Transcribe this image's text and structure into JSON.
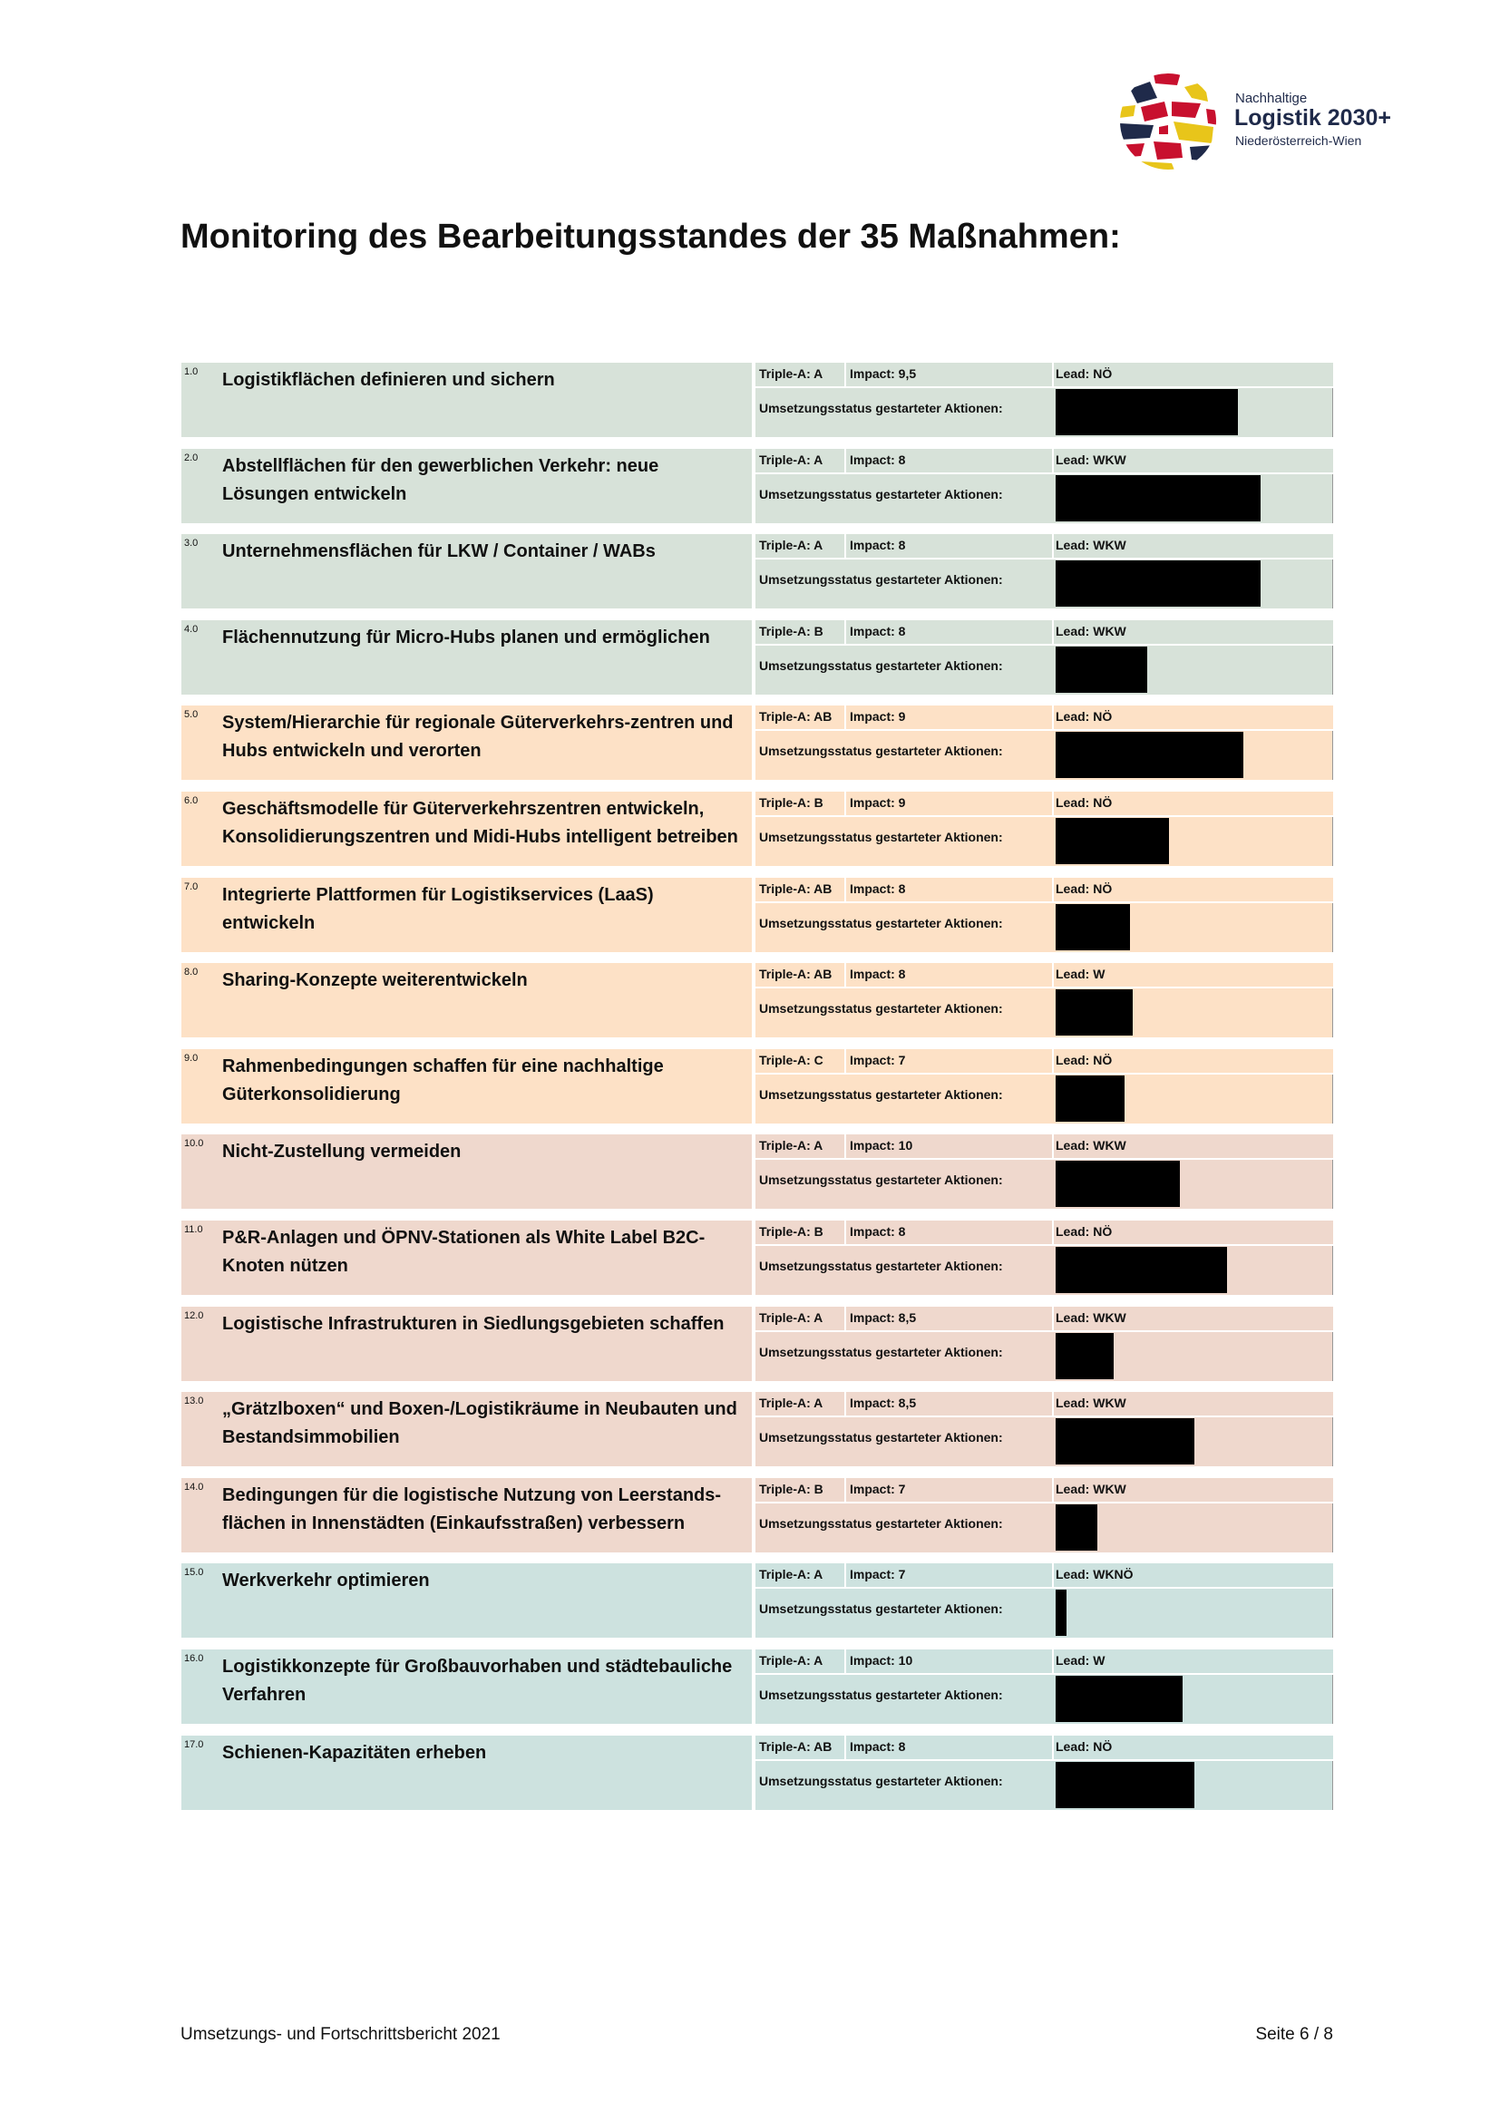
{
  "logo": {
    "line1": "Nachhaltige",
    "line2": "Logistik 2030+",
    "line3": "Niederösterreich-Wien"
  },
  "title": "Monitoring des Bearbeitungsstandes der 35 Maßnahmen:",
  "status_label": "Umsetzungsstatus gestarteter Aktionen:",
  "colors": {
    "green": "#d7e2d9",
    "orange": "#fde1c6",
    "pink": "#efd8cd",
    "teal": "#cde2df",
    "bar": "#000000"
  },
  "measures": [
    {
      "num": "1.0",
      "name": "Logistikflächen definieren und sichern",
      "triple": "Triple-A: A",
      "impact": "Impact: 9,5",
      "lead": "Lead: NÖ",
      "progress_pct": 66,
      "group": "green"
    },
    {
      "num": "2.0",
      "name": "Abstellflächen für den gewerblichen Verkehr: neue Lösungen entwickeln",
      "triple": "Triple-A: A",
      "impact": "Impact: 8",
      "lead": "Lead: WKW",
      "progress_pct": 74,
      "group": "green"
    },
    {
      "num": "3.0",
      "name": "Unternehmensflächen für LKW / Container / WABs",
      "triple": "Triple-A: A",
      "impact": "Impact: 8",
      "lead": "Lead: WKW",
      "progress_pct": 74,
      "group": "green"
    },
    {
      "num": "4.0",
      "name": "Flächennutzung für Micro-Hubs planen und ermöglichen",
      "triple": "Triple-A: B",
      "impact": "Impact: 8",
      "lead": "Lead: WKW",
      "progress_pct": 33,
      "group": "green"
    },
    {
      "num": "5.0",
      "name": "System/Hierarchie für regionale Güterverkehrs-zentren und Hubs entwickeln und verorten",
      "triple": "Triple-A: AB",
      "impact": "Impact: 9",
      "lead": "Lead: NÖ",
      "progress_pct": 68,
      "group": "orange"
    },
    {
      "num": "6.0",
      "name": "Geschäftsmodelle für Güterverkehrszentren entwickeln, Konsolidierungszentren und Midi-Hubs intelligent betreiben",
      "triple": "Triple-A: B",
      "impact": "Impact: 9",
      "lead": "Lead: NÖ",
      "progress_pct": 41,
      "group": "orange"
    },
    {
      "num": "7.0",
      "name": "Integrierte Plattformen für Logistikservices (LaaS) entwickeln",
      "triple": "Triple-A: AB",
      "impact": "Impact: 8",
      "lead": "Lead: NÖ",
      "progress_pct": 27,
      "group": "orange"
    },
    {
      "num": "8.0",
      "name": "Sharing-Konzepte weiterentwickeln",
      "triple": "Triple-A: AB",
      "impact": "Impact: 8",
      "lead": "Lead: W",
      "progress_pct": 28,
      "group": "orange"
    },
    {
      "num": "9.0",
      "name": "Rahmenbedingungen schaffen für eine nachhaltige Güterkonsolidierung",
      "triple": "Triple-A: C",
      "impact": "Impact: 7",
      "lead": "Lead: NÖ",
      "progress_pct": 25,
      "group": "orange"
    },
    {
      "num": "10.0",
      "name": "Nicht-Zustellung vermeiden",
      "triple": "Triple-A: A",
      "impact": "Impact: 10",
      "lead": "Lead: WKW",
      "progress_pct": 45,
      "group": "pink"
    },
    {
      "num": "11.0",
      "name": "P&R-Anlagen und ÖPNV-Stationen als White Label B2C-Knoten nützen",
      "triple": "Triple-A: B",
      "impact": "Impact: 8",
      "lead": "Lead: NÖ",
      "progress_pct": 62,
      "group": "pink"
    },
    {
      "num": "12.0",
      "name": "Logistische Infrastrukturen in Siedlungsgebieten schaffen",
      "triple": "Triple-A: A",
      "impact": "Impact: 8,5",
      "lead": "Lead: WKW",
      "progress_pct": 21,
      "group": "pink"
    },
    {
      "num": "13.0",
      "name": "„Grätzlboxen“ und Boxen-/Logistikräume in Neubauten und Bestandsimmobilien",
      "triple": "Triple-A: A",
      "impact": "Impact: 8,5",
      "lead": "Lead: WKW",
      "progress_pct": 50,
      "group": "pink"
    },
    {
      "num": "14.0",
      "name": "Bedingungen für die logistische Nutzung von Leerstands-flächen in Innenstädten (Einkaufsstraßen) verbessern",
      "triple": "Triple-A: B",
      "impact": "Impact: 7",
      "lead": "Lead: WKW",
      "progress_pct": 15,
      "group": "pink"
    },
    {
      "num": "15.0",
      "name": "Werkverkehr optimieren",
      "triple": "Triple-A: A",
      "impact": "Impact: 7",
      "lead": "Lead: WKNÖ",
      "progress_pct": 4,
      "group": "teal"
    },
    {
      "num": "16.0",
      "name": "Logistikkonzepte für Großbauvorhaben und städtebauliche Verfahren",
      "triple": "Triple-A: A",
      "impact": "Impact: 10",
      "lead": "Lead: W",
      "progress_pct": 46,
      "group": "teal"
    },
    {
      "num": "17.0",
      "name": "Schienen-Kapazitäten erheben",
      "triple": "Triple-A: AB",
      "impact": "Impact: 8",
      "lead": "Lead: NÖ",
      "progress_pct": 50,
      "group": "teal"
    }
  ],
  "footer": {
    "left": "Umsetzungs- und Fortschrittsbericht 2021",
    "right": "Seite 6 / 8"
  }
}
